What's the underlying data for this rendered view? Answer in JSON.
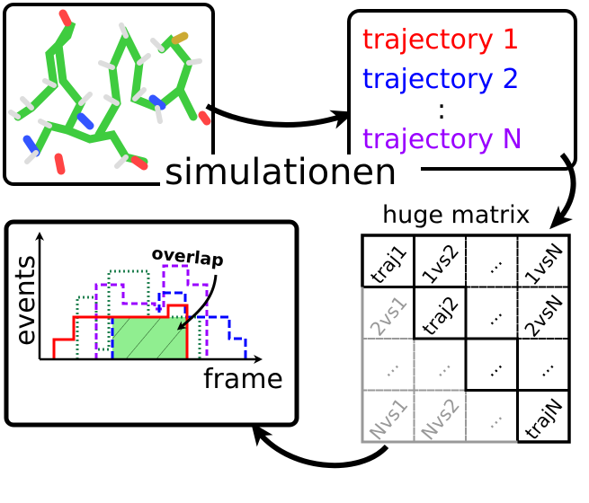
{
  "trajectories": {
    "items": [
      {
        "label": "trajectory 1",
        "color": "#ff0000"
      },
      {
        "label": "trajectory 2",
        "color": "#0000ff"
      },
      {
        "label": "trajectory N",
        "color": "#9900ff"
      }
    ],
    "ellipsis": ":"
  },
  "simulation_label": "simulationen",
  "matrix": {
    "title": "huge matrix",
    "cells": [
      [
        "traj1",
        "1vs2",
        "...",
        "1vsN"
      ],
      [
        "2vs1",
        "traj2",
        "...",
        "2vsN"
      ],
      [
        "...",
        "...",
        "...",
        "..."
      ],
      [
        "Nvs1",
        "Nvs2",
        "...",
        "trajN"
      ]
    ]
  },
  "histogram": {
    "ylabel": "events",
    "xlabel": "frame",
    "annotation": "overlap",
    "colors": {
      "red": "#ff0000",
      "blue": "#0000ff",
      "purple": "#9900ff",
      "green": "#208050",
      "overlap_fill": "#90ee90"
    }
  }
}
